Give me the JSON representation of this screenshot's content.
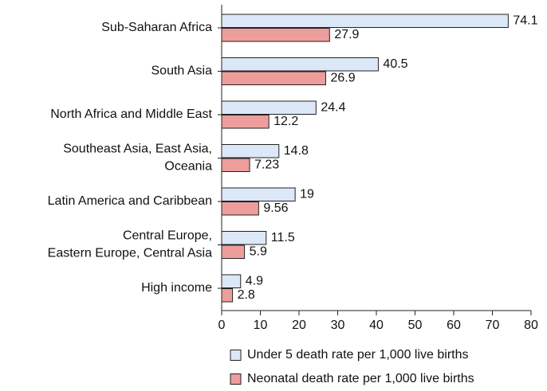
{
  "chart_data": {
    "type": "bar",
    "orientation": "horizontal",
    "categories": [
      [
        "Sub-Saharan Africa"
      ],
      [
        "South Asia"
      ],
      [
        "North Africa and Middle East"
      ],
      [
        "Southeast Asia, East Asia,",
        "Oceania"
      ],
      [
        "Latin America and Caribbean"
      ],
      [
        "Central Europe,",
        "Eastern Europe, Central Asia"
      ],
      [
        "High income"
      ]
    ],
    "series": [
      {
        "name": "Under 5 death rate per 1,000 live births",
        "color": "#dce8f7",
        "values": [
          74.1,
          40.5,
          24.4,
          14.8,
          19,
          11.5,
          4.9
        ],
        "labels": [
          "74.1",
          "40.5",
          "24.4",
          "14.8",
          "19",
          "11.5",
          "4.9"
        ]
      },
      {
        "name": "Neonatal death rate per 1,000 live births",
        "color": "#ee9d9d",
        "values": [
          27.9,
          26.9,
          12.2,
          7.23,
          9.56,
          5.9,
          2.8
        ],
        "labels": [
          "27.9",
          "26.9",
          "12.2",
          "7.23",
          "9.56",
          "5.9",
          "2.8"
        ]
      }
    ],
    "xlim": [
      0,
      80
    ],
    "xticks": [
      0,
      10,
      20,
      30,
      40,
      50,
      60,
      70,
      80
    ],
    "grid": false,
    "legend": "bottom"
  }
}
